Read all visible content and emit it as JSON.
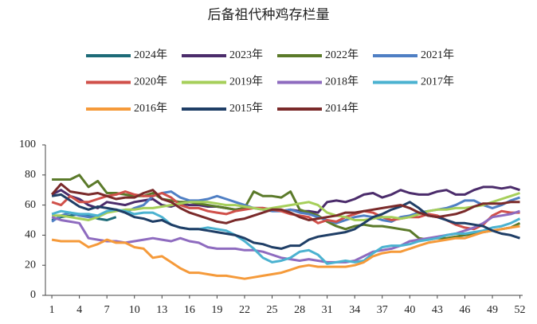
{
  "chart_data": {
    "type": "line",
    "title": "后备祖代种鸡存栏量",
    "x": [
      1,
      2,
      3,
      4,
      5,
      6,
      7,
      8,
      9,
      10,
      11,
      12,
      13,
      14,
      15,
      16,
      17,
      18,
      19,
      20,
      21,
      22,
      23,
      24,
      25,
      26,
      27,
      28,
      29,
      30,
      31,
      32,
      33,
      34,
      35,
      36,
      37,
      38,
      39,
      40,
      41,
      42,
      43,
      44,
      45,
      46,
      47,
      48,
      49,
      50,
      51,
      52
    ],
    "xlim": [
      0.3,
      52.3
    ],
    "xticks": [
      1,
      4,
      7,
      10,
      13,
      16,
      19,
      22,
      25,
      28,
      31,
      34,
      37,
      40,
      43,
      46,
      49,
      52
    ],
    "ylim": [
      0,
      100
    ],
    "yticks": [
      0,
      20,
      40,
      60,
      80,
      100
    ],
    "grid": false,
    "series": [
      {
        "name": "2024年",
        "color": "#1d6b78",
        "values": [
          50,
          52,
          53,
          54,
          53,
          51,
          50,
          52,
          null,
          null,
          null,
          null,
          null,
          null,
          null,
          null,
          null,
          null,
          null,
          null,
          null,
          null,
          null,
          null,
          null,
          null,
          null,
          null,
          null,
          null,
          null,
          null,
          null,
          null,
          null,
          null,
          null,
          null,
          null,
          null,
          null,
          null,
          null,
          null,
          null,
          null,
          null,
          null,
          null,
          null,
          null,
          null
        ]
      },
      {
        "name": "2023年",
        "color": "#4b2c6b",
        "values": [
          67,
          70,
          66,
          64,
          60,
          58,
          62,
          61,
          60,
          62,
          63,
          64,
          60,
          59,
          61,
          60,
          60,
          59,
          59,
          58,
          57,
          58,
          58,
          58,
          57,
          56,
          57,
          56,
          56,
          55,
          62,
          63,
          62,
          64,
          67,
          68,
          65,
          67,
          70,
          68,
          67,
          67,
          69,
          70,
          67,
          67,
          70,
          72,
          72,
          71,
          72,
          70
        ]
      },
      {
        "name": "2022年",
        "color": "#5b7a2a",
        "values": [
          77,
          77,
          77,
          80,
          72,
          76,
          68,
          68,
          67,
          66,
          66,
          68,
          64,
          63,
          62,
          62,
          61,
          60,
          59,
          58,
          57,
          58,
          69,
          66,
          66,
          65,
          69,
          57,
          55,
          53,
          49,
          46,
          44,
          46,
          47,
          46,
          46,
          45,
          44,
          43,
          38,
          37,
          38,
          38,
          39,
          40,
          41,
          42,
          43,
          44,
          45,
          48
        ]
      },
      {
        "name": "2021年",
        "color": "#4f7fc4",
        "values": [
          49,
          53,
          55,
          53,
          52,
          52,
          55,
          57,
          55,
          58,
          60,
          66,
          68,
          69,
          65,
          63,
          63,
          64,
          66,
          64,
          62,
          60,
          58,
          57,
          56,
          56,
          57,
          55,
          54,
          52,
          50,
          48,
          50,
          52,
          53,
          52,
          50,
          49,
          52,
          53,
          55,
          56,
          57,
          58,
          60,
          63,
          63,
          60,
          58,
          60,
          63,
          65
        ]
      },
      {
        "name": "2020年",
        "color": "#d0504a",
        "values": [
          62,
          60,
          66,
          62,
          62,
          64,
          66,
          67,
          69,
          67,
          66,
          66,
          68,
          65,
          60,
          58,
          58,
          56,
          55,
          54,
          56,
          57,
          58,
          58,
          57,
          56,
          54,
          53,
          52,
          48,
          50,
          49,
          52,
          54,
          56,
          55,
          52,
          50,
          51,
          52,
          52,
          54,
          53,
          50,
          47,
          45,
          44,
          47,
          53,
          56,
          55,
          55
        ]
      },
      {
        "name": "2019年",
        "color": "#a6cf5a",
        "values": [
          53,
          53,
          52,
          51,
          50,
          52,
          55,
          56,
          57,
          57,
          58,
          58,
          59,
          60,
          61,
          62,
          62,
          62,
          61,
          60,
          60,
          59,
          58,
          57,
          58,
          59,
          60,
          61,
          62,
          60,
          55,
          53,
          52,
          50,
          50,
          51,
          52,
          52,
          51,
          52,
          54,
          56,
          57,
          57,
          58,
          58,
          59,
          60,
          62,
          64,
          66,
          68
        ]
      },
      {
        "name": "2018年",
        "color": "#8e6bbf",
        "values": [
          52,
          50,
          49,
          48,
          38,
          37,
          36,
          36,
          35,
          36,
          37,
          38,
          37,
          36,
          38,
          36,
          35,
          32,
          31,
          31,
          31,
          30,
          30,
          29,
          27,
          25,
          24,
          23,
          24,
          23,
          22,
          22,
          22,
          23,
          26,
          29,
          30,
          31,
          33,
          36,
          37,
          38,
          39,
          40,
          41,
          43,
          45,
          48,
          52,
          53,
          54,
          56
        ]
      },
      {
        "name": "2017年",
        "color": "#4bb2d0",
        "values": [
          54,
          56,
          55,
          54,
          54,
          53,
          56,
          57,
          56,
          54,
          55,
          55,
          52,
          47,
          45,
          44,
          44,
          45,
          44,
          43,
          40,
          36,
          31,
          25,
          22,
          23,
          25,
          29,
          30,
          27,
          21,
          22,
          23,
          22,
          23,
          28,
          32,
          33,
          33,
          34,
          36,
          37,
          38,
          40,
          41,
          41,
          42,
          43,
          45,
          46,
          48,
          51
        ]
      },
      {
        "name": "2016年",
        "color": "#f59a3a",
        "values": [
          37,
          36,
          36,
          36,
          32,
          34,
          37,
          35,
          35,
          32,
          31,
          25,
          26,
          22,
          18,
          15,
          15,
          14,
          13,
          13,
          12,
          11,
          12,
          13,
          14,
          15,
          17,
          19,
          20,
          19,
          19,
          19,
          19,
          20,
          22,
          26,
          28,
          29,
          29,
          31,
          33,
          35,
          36,
          37,
          38,
          38,
          40,
          42,
          43,
          44,
          45,
          46
        ]
      },
      {
        "name": "2015年",
        "color": "#1f3e66",
        "values": [
          66,
          67,
          63,
          59,
          57,
          59,
          58,
          57,
          55,
          52,
          51,
          49,
          50,
          47,
          45,
          44,
          44,
          43,
          42,
          41,
          40,
          38,
          35,
          34,
          32,
          31,
          33,
          33,
          37,
          39,
          40,
          41,
          42,
          44,
          48,
          52,
          54,
          57,
          59,
          62,
          58,
          53,
          52,
          50,
          48,
          48,
          47,
          46,
          43,
          41,
          40,
          38
        ]
      },
      {
        "name": "2014年",
        "color": "#7a2a2a",
        "values": [
          67,
          74,
          69,
          68,
          67,
          68,
          66,
          64,
          65,
          65,
          68,
          70,
          64,
          62,
          58,
          55,
          53,
          51,
          49,
          48,
          50,
          51,
          53,
          55,
          57,
          57,
          55,
          52,
          50,
          51,
          52,
          53,
          55,
          55,
          56,
          57,
          58,
          59,
          60,
          58,
          55,
          53,
          52,
          53,
          54,
          56,
          59,
          61,
          61,
          61,
          62,
          62
        ]
      }
    ]
  }
}
